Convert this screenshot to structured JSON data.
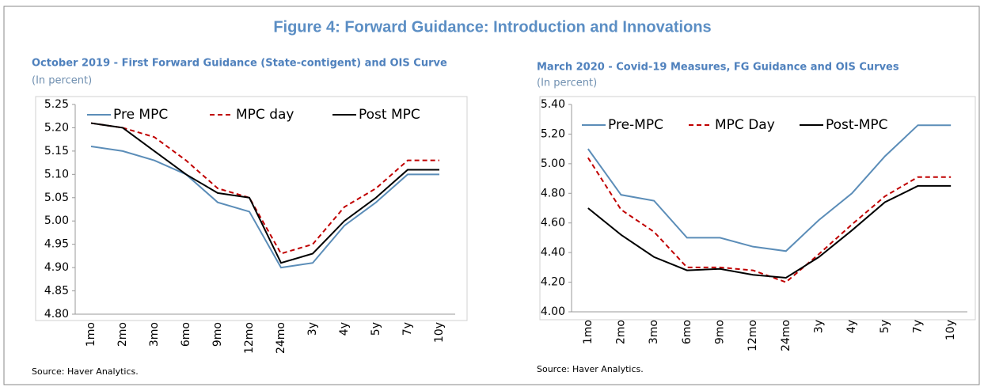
{
  "title": "Figure 4: Forward Guidance: Introduction and Innovations",
  "chart_data": [
    {
      "type": "line",
      "title": "October 2019 - First Forward Guidance (State-contigent) and OIS Curve",
      "subtitle": "(In percent)",
      "source": "Source: Haver Analytics.",
      "categories": [
        "1mo",
        "2mo",
        "3mo",
        "6mo",
        "9mo",
        "12mo",
        "24mo",
        "3y",
        "4y",
        "5y",
        "7y",
        "10y"
      ],
      "series": [
        {
          "name": "Pre MPC",
          "color": "#5b8db8",
          "dashed": false,
          "values": [
            5.16,
            5.15,
            5.13,
            5.1,
            5.04,
            5.02,
            4.9,
            4.91,
            4.99,
            5.04,
            5.1,
            5.1
          ]
        },
        {
          "name": "MPC day",
          "color": "#c00000",
          "dashed": true,
          "values": [
            5.21,
            5.2,
            5.18,
            5.13,
            5.07,
            5.05,
            4.93,
            4.95,
            5.03,
            5.07,
            5.13,
            5.13
          ]
        },
        {
          "name": "Post MPC",
          "color": "#000000",
          "dashed": false,
          "values": [
            5.21,
            5.2,
            5.15,
            5.1,
            5.06,
            5.05,
            4.91,
            4.93,
            5.0,
            5.05,
            5.11,
            5.11
          ]
        }
      ],
      "ylim": [
        4.8,
        5.25
      ],
      "yticks": [
        {
          "value": 4.8,
          "label": "4.80"
        },
        4.85,
        {
          "value": 4.9,
          "label": "4.90"
        },
        4.95,
        {
          "value": 5.0,
          "label": "5.00"
        },
        5.05,
        {
          "value": 5.1,
          "label": "5.10"
        },
        5.15,
        {
          "value": 5.2,
          "label": "5.20"
        },
        5.25
      ],
      "legend": "top",
      "grid": false
    },
    {
      "type": "line",
      "title": "March 2020  - Covid-19 Measures, FG Guidance and OIS Curves",
      "subtitle": "(In percent)",
      "source": "Source: Haver Analytics.",
      "categories": [
        "1mo",
        "2mo",
        "3mo",
        "6mo",
        "9mo",
        "12mo",
        "24mo",
        "3y",
        "4y",
        "5y",
        "7y",
        "10y"
      ],
      "series": [
        {
          "name": "Pre-MPC",
          "color": "#5b8db8",
          "dashed": false,
          "values": [
            5.1,
            4.79,
            4.75,
            4.5,
            4.5,
            4.44,
            4.41,
            4.62,
            4.8,
            5.05,
            5.26,
            5.26
          ]
        },
        {
          "name": "MPC Day",
          "color": "#c00000",
          "dashed": true,
          "values": [
            5.04,
            4.69,
            4.54,
            4.3,
            4.3,
            4.28,
            4.2,
            4.39,
            4.59,
            4.78,
            4.91,
            4.91
          ]
        },
        {
          "name": "Post-MPC",
          "color": "#000000",
          "dashed": false,
          "values": [
            4.7,
            4.52,
            4.37,
            4.28,
            4.29,
            4.25,
            4.23,
            4.37,
            4.55,
            4.74,
            4.85,
            4.85
          ]
        }
      ],
      "ylim": [
        4.0,
        5.4
      ],
      "yticks": [
        {
          "value": 4.0,
          "label": "4.00"
        },
        {
          "value": 4.2,
          "label": "4.20"
        },
        {
          "value": 4.4,
          "label": "4.40"
        },
        {
          "value": 4.6,
          "label": "4.60"
        },
        {
          "value": 4.8,
          "label": "4.80"
        },
        {
          "value": 5.0,
          "label": "5.00"
        },
        {
          "value": 5.2,
          "label": "5.20"
        },
        {
          "value": 5.4,
          "label": "5.40"
        }
      ],
      "legend": "top",
      "grid": false
    }
  ]
}
